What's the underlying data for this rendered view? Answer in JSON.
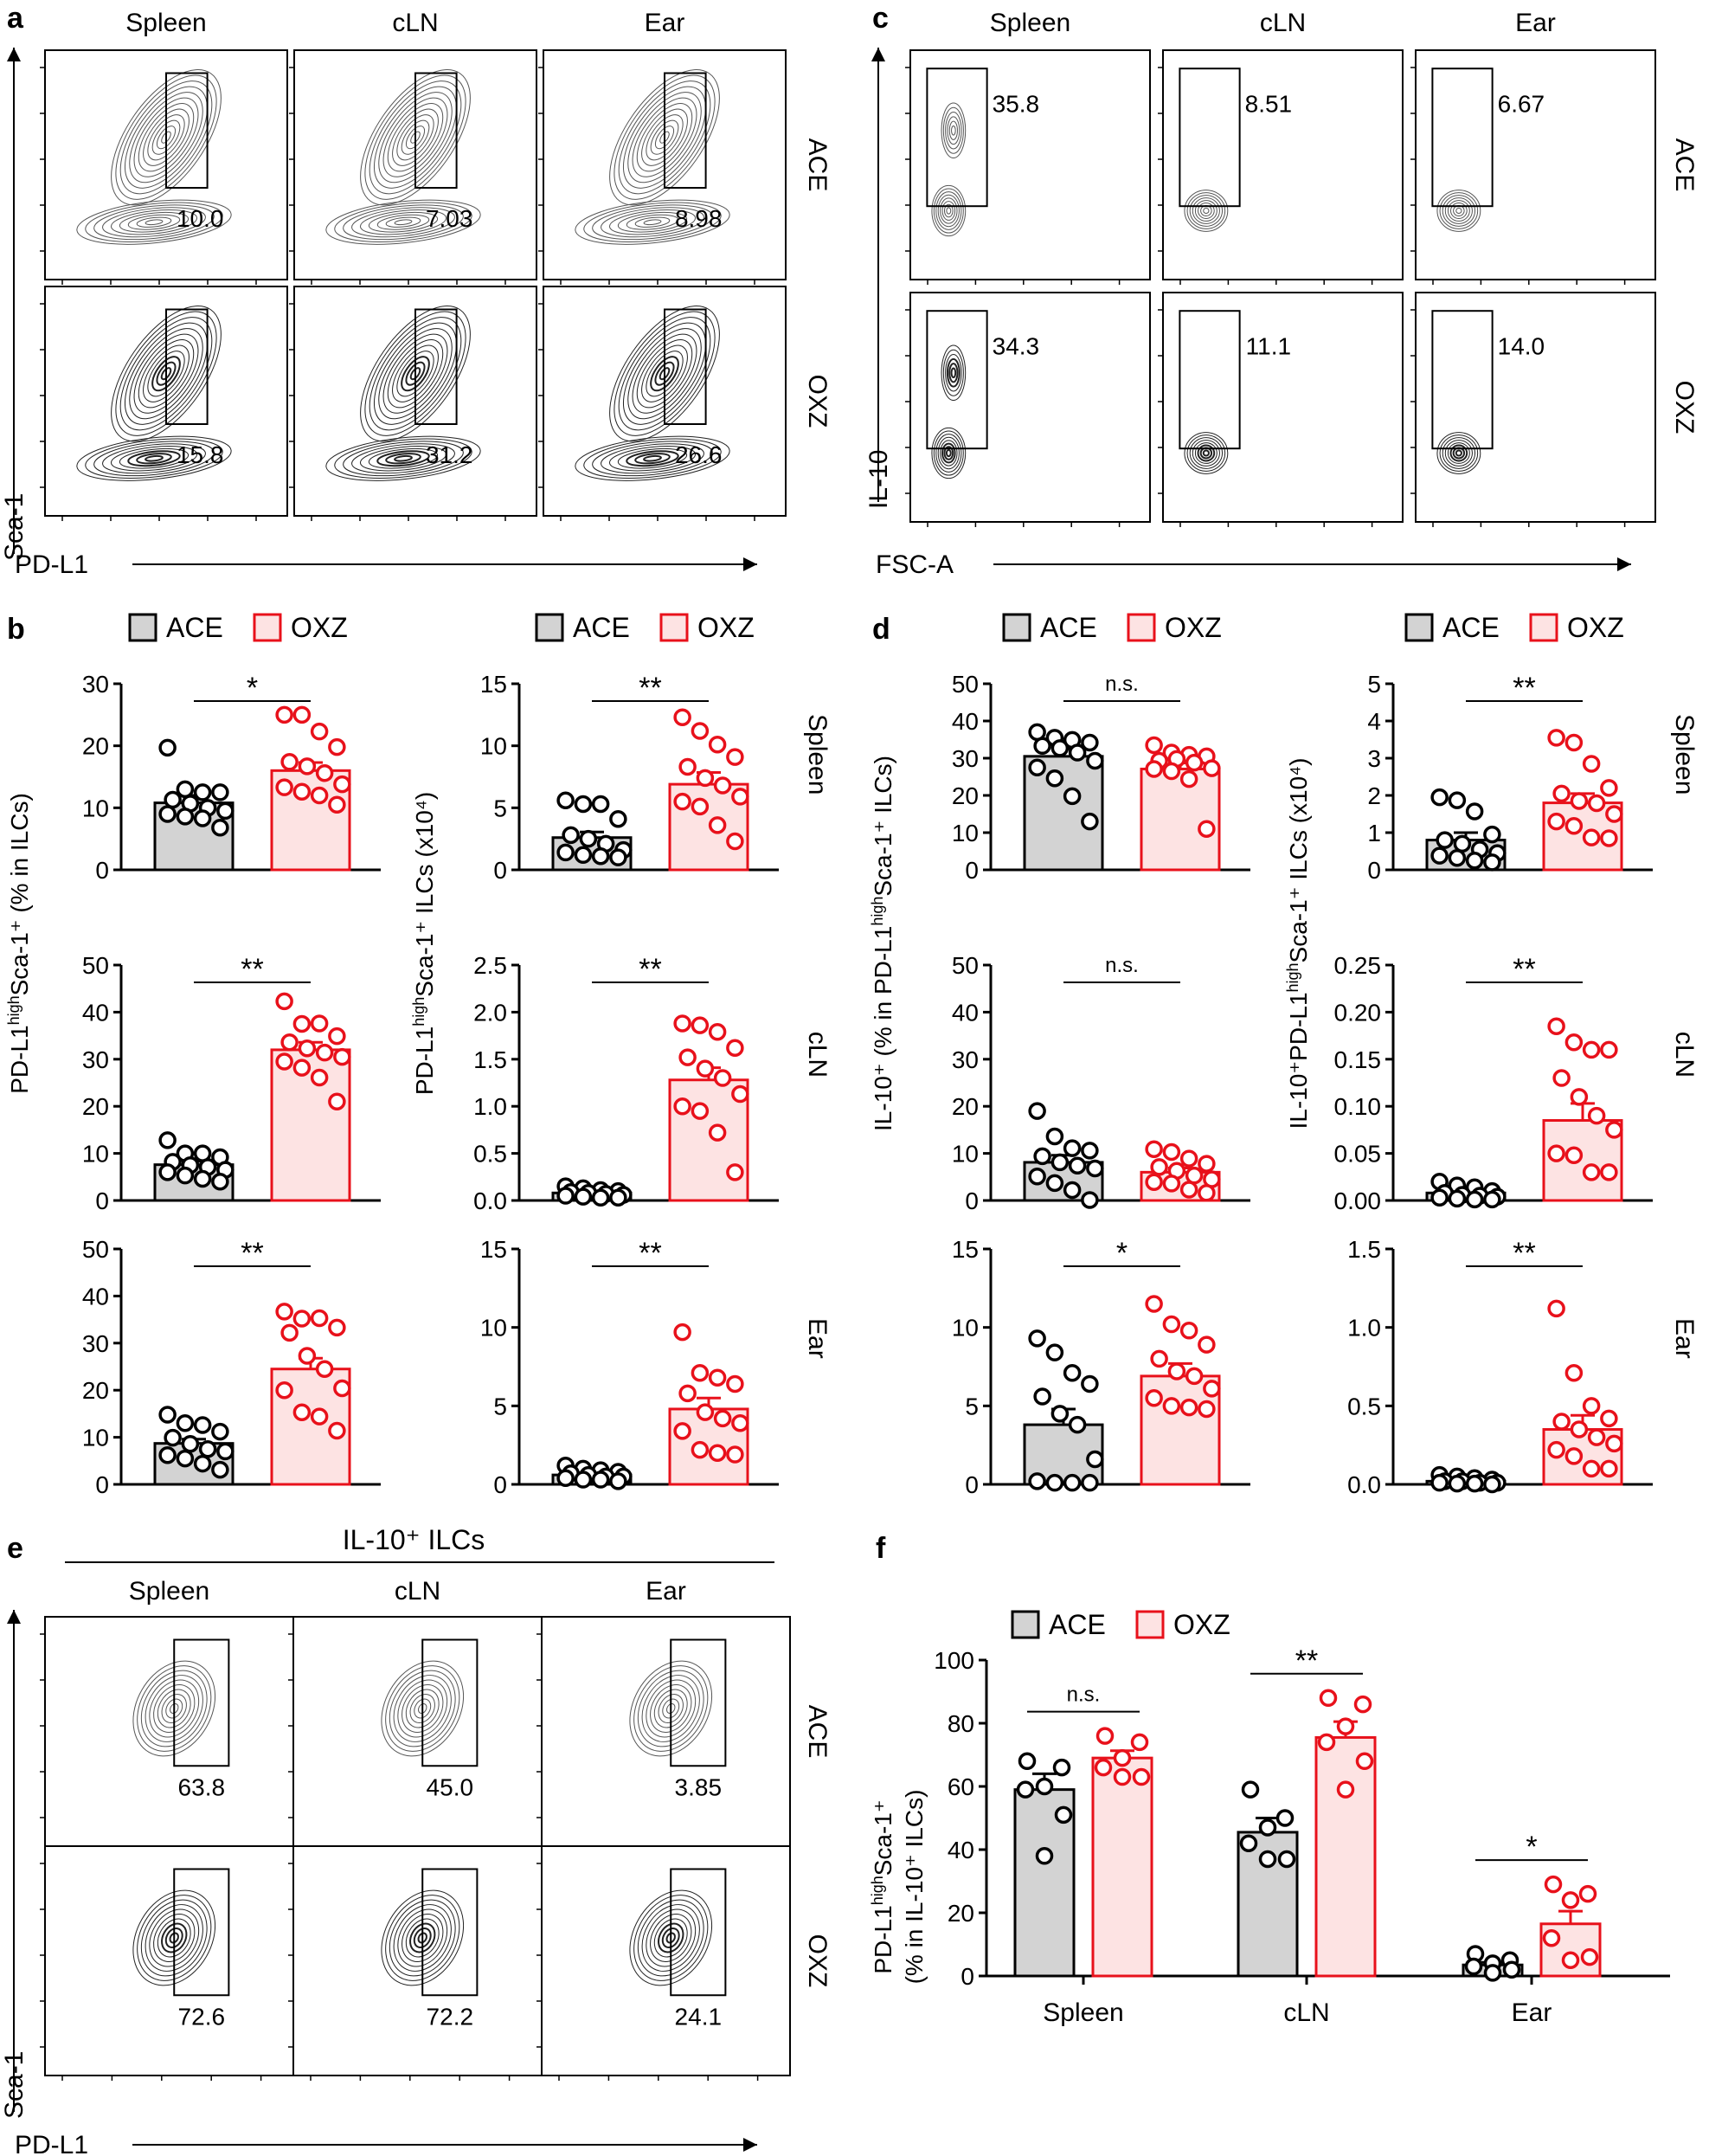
{
  "colors": {
    "ace_fill": "#d3d3d3",
    "ace_edge": "#000000",
    "oxz_fill": "#fde3e3",
    "oxz_edge": "#e8111b"
  },
  "legend": {
    "ace": "ACE",
    "oxz": "OXZ"
  },
  "panels": {
    "a": {
      "label": "a",
      "columns": [
        "Spleen",
        "cLN",
        "Ear"
      ],
      "rows": [
        "ACE",
        "OXZ"
      ],
      "xlabel": "PD-L1",
      "ylabel": "Sca-1",
      "values": [
        [
          "10.0",
          "7.03",
          "8.98"
        ],
        [
          "15.8",
          "31.2",
          "26.6"
        ]
      ]
    },
    "c": {
      "label": "c",
      "columns": [
        "Spleen",
        "cLN",
        "Ear"
      ],
      "rows": [
        "ACE",
        "OXZ"
      ],
      "xlabel": "FSC-A",
      "ylabel": "IL-10",
      "values": [
        [
          "35.8",
          "8.51",
          "6.67"
        ],
        [
          "34.3",
          "11.1",
          "14.0"
        ]
      ]
    },
    "e": {
      "label": "e",
      "title": "IL-10⁺ ILCs",
      "columns": [
        "Spleen",
        "cLN",
        "Ear"
      ],
      "rows": [
        "ACE",
        "OXZ"
      ],
      "xlabel": "PD-L1",
      "ylabel": "Sca-1",
      "values": [
        [
          "63.8",
          "45.0",
          "3.85"
        ],
        [
          "72.6",
          "72.2",
          "24.1"
        ]
      ]
    },
    "b": {
      "label": "b",
      "ylabel_left": "PD-L1highSca-1⁺ (% in ILCs)",
      "ylabel_right": "PD-L1highSca-1⁺ ILCs (x10⁴)",
      "rows": [
        "Spleen",
        "cLN",
        "Ear"
      ]
    },
    "d": {
      "label": "d",
      "ylabel_left": "IL-10⁺ (% in PD-L1highSca-1⁺ ILCs)",
      "ylabel_right": "IL-10⁺PD-L1highSca-1⁺ ILCs (x10⁴)",
      "rows": [
        "Spleen",
        "cLN",
        "Ear"
      ]
    },
    "f": {
      "label": "f",
      "ylabel_line1": "PD-L1highSca-1⁺",
      "ylabel_line2": "(% in IL-10⁺ ILCs)"
    }
  },
  "chart_data": [
    {
      "id": "b_spleen_pct",
      "type": "bar",
      "panel": "b",
      "tissue": "Spleen",
      "categories": [
        "ACE",
        "OXZ"
      ],
      "ylim": [
        0,
        30
      ],
      "ticks": [
        0,
        10,
        20,
        30
      ],
      "series": [
        {
          "name": "ACE",
          "mean": 10.8,
          "sem": 1.2,
          "points": [
            19.7,
            13,
            12.5,
            12.5,
            11.3,
            10.7,
            10,
            9.5,
            9,
            8.6,
            8.3,
            6.8
          ]
        },
        {
          "name": "OXZ",
          "mean": 16,
          "sem": 1.3,
          "points": [
            25,
            25,
            22.3,
            19.8,
            17.4,
            16.7,
            15.6,
            13.8,
            13.3,
            12.6,
            12,
            10.5
          ]
        }
      ],
      "significance": "*"
    },
    {
      "id": "b_spleen_num",
      "type": "bar",
      "panel": "b",
      "tissue": "Spleen",
      "categories": [
        "ACE",
        "OXZ"
      ],
      "ylim": [
        0,
        15
      ],
      "ticks": [
        0,
        5,
        10,
        15
      ],
      "series": [
        {
          "name": "ACE",
          "mean": 2.6,
          "sem": 0.45,
          "points": [
            5.6,
            5.3,
            5.3,
            4.1,
            2.8,
            2.5,
            2.1,
            1.6,
            1.4,
            1.2,
            1.1,
            1.0
          ]
        },
        {
          "name": "OXZ",
          "mean": 6.9,
          "sem": 0.95,
          "points": [
            12.3,
            11.2,
            10.1,
            9.1,
            8.3,
            7.4,
            6.8,
            5.9,
            5.5,
            5.1,
            3.6,
            2.3
          ]
        }
      ],
      "significance": "**"
    },
    {
      "id": "b_cln_pct",
      "type": "bar",
      "panel": "b",
      "tissue": "cLN",
      "categories": [
        "ACE",
        "OXZ"
      ],
      "ylim": [
        0,
        50
      ],
      "ticks": [
        0,
        10,
        20,
        30,
        40,
        50
      ],
      "series": [
        {
          "name": "ACE",
          "mean": 7.6,
          "sem": 0.7,
          "points": [
            12.8,
            10,
            10,
            9.2,
            8.2,
            7.5,
            7.1,
            6.5,
            6,
            5.3,
            4.6,
            4
          ]
        },
        {
          "name": "OXZ",
          "mean": 32,
          "sem": 1.6,
          "points": [
            42.3,
            37.5,
            37.6,
            34.9,
            33.6,
            32.3,
            31.4,
            30.5,
            29.5,
            28.2,
            26.1,
            21
          ]
        }
      ],
      "significance": "**"
    },
    {
      "id": "b_cln_num",
      "type": "bar",
      "panel": "b",
      "tissue": "cLN",
      "categories": [
        "ACE",
        "OXZ"
      ],
      "ylim": [
        0,
        2.5
      ],
      "ticks": [
        0,
        0.5,
        1.0,
        1.5,
        2.0,
        2.5
      ],
      "series": [
        {
          "name": "ACE",
          "mean": 0.08,
          "sem": 0.01,
          "points": [
            0.15,
            0.13,
            0.11,
            0.1,
            0.09,
            0.08,
            0.07,
            0.06,
            0.05,
            0.04,
            0.03,
            0.03
          ]
        },
        {
          "name": "OXZ",
          "mean": 1.28,
          "sem": 0.13,
          "points": [
            1.88,
            1.86,
            1.79,
            1.62,
            1.52,
            1.4,
            1.3,
            1.13,
            1.0,
            0.95,
            0.72,
            0.3
          ]
        }
      ],
      "significance": "**"
    },
    {
      "id": "b_ear_pct",
      "type": "bar",
      "panel": "b",
      "tissue": "Ear",
      "categories": [
        "ACE",
        "OXZ"
      ],
      "ylim": [
        0,
        50
      ],
      "ticks": [
        0,
        10,
        20,
        30,
        40,
        50
      ],
      "series": [
        {
          "name": "ACE",
          "mean": 8.7,
          "sem": 0.9,
          "points": [
            14.8,
            13,
            12.6,
            11.2,
            9.9,
            8.6,
            7.5,
            7,
            6.2,
            5.5,
            4.4,
            3.1
          ]
        },
        {
          "name": "OXZ",
          "mean": 24.5,
          "sem": 2.3,
          "points": [
            36.7,
            35.2,
            35.3,
            33.3,
            32.2,
            27.3,
            24.5,
            20.4,
            20,
            15.3,
            14.4,
            11.4
          ]
        }
      ],
      "significance": "**"
    },
    {
      "id": "b_ear_num",
      "type": "bar",
      "panel": "b",
      "tissue": "Ear",
      "categories": [
        "ACE",
        "OXZ"
      ],
      "ylim": [
        0,
        15
      ],
      "ticks": [
        0,
        5,
        10,
        15
      ],
      "series": [
        {
          "name": "ACE",
          "mean": 0.6,
          "sem": 0.1,
          "points": [
            1.2,
            1.0,
            0.9,
            0.8,
            0.7,
            0.6,
            0.5,
            0.5,
            0.4,
            0.3,
            0.3,
            0.2
          ]
        },
        {
          "name": "OXZ",
          "mean": 4.8,
          "sem": 0.7,
          "points": [
            9.7,
            7.1,
            6.8,
            6.4,
            5.8,
            4.6,
            4.2,
            3.9,
            3.4,
            2.2,
            2.0,
            1.9
          ]
        }
      ],
      "significance": "**"
    },
    {
      "id": "d_spleen_pct",
      "type": "bar",
      "panel": "d",
      "tissue": "Spleen",
      "categories": [
        "ACE",
        "OXZ"
      ],
      "ylim": [
        0,
        50
      ],
      "ticks": [
        0,
        10,
        20,
        30,
        40,
        50
      ],
      "series": [
        {
          "name": "ACE",
          "mean": 30.5,
          "sem": 2.0,
          "points": [
            37,
            35.5,
            34.9,
            34.2,
            33.3,
            32.7,
            31.5,
            29.3,
            27.5,
            24.6,
            19.8,
            13
          ]
        },
        {
          "name": "OXZ",
          "mean": 27.1,
          "sem": 1.6,
          "points": [
            33.5,
            31.5,
            30.9,
            30.5,
            29.3,
            29.8,
            28.8,
            27.3,
            27.1,
            26.5,
            24.4,
            11
          ]
        }
      ],
      "significance": "n.s."
    },
    {
      "id": "d_spleen_num",
      "type": "bar",
      "panel": "d",
      "tissue": "Spleen",
      "categories": [
        "ACE",
        "OXZ"
      ],
      "ylim": [
        0,
        5
      ],
      "ticks": [
        0,
        1,
        2,
        3,
        4,
        5
      ],
      "series": [
        {
          "name": "ACE",
          "mean": 0.8,
          "sem": 0.2,
          "points": [
            1.95,
            1.87,
            1.57,
            0.95,
            0.8,
            0.7,
            0.55,
            0.45,
            0.38,
            0.32,
            0.25,
            0.2
          ]
        },
        {
          "name": "OXZ",
          "mean": 1.8,
          "sem": 0.25,
          "points": [
            3.55,
            3.42,
            2.85,
            2.2,
            2.05,
            1.85,
            1.79,
            1.5,
            1.3,
            1.18,
            0.87,
            0.85
          ]
        }
      ],
      "significance": "**"
    },
    {
      "id": "d_cln_pct",
      "type": "bar",
      "panel": "d",
      "tissue": "cLN",
      "categories": [
        "ACE",
        "OXZ"
      ],
      "ylim": [
        0,
        50
      ],
      "ticks": [
        0,
        10,
        20,
        30,
        40,
        50
      ],
      "series": [
        {
          "name": "ACE",
          "mean": 8.1,
          "sem": 1.5,
          "points": [
            19,
            13.6,
            11.1,
            10.6,
            9.4,
            8.1,
            7.4,
            6.8,
            5.1,
            3.7,
            2.2,
            0.1
          ]
        },
        {
          "name": "OXZ",
          "mean": 6.0,
          "sem": 0.9,
          "points": [
            10.9,
            10.3,
            8.9,
            7.8,
            7.1,
            6.3,
            5.3,
            4.5,
            3.9,
            3.6,
            2.3,
            1.6
          ]
        }
      ],
      "significance": "n.s."
    },
    {
      "id": "d_cln_num",
      "type": "bar",
      "panel": "d",
      "tissue": "cLN",
      "categories": [
        "ACE",
        "OXZ"
      ],
      "ylim": [
        0,
        0.25
      ],
      "ticks": [
        0,
        0.05,
        0.1,
        0.15,
        0.2,
        0.25
      ],
      "series": [
        {
          "name": "ACE",
          "mean": 0.008,
          "sem": 0.002,
          "points": [
            0.02,
            0.016,
            0.014,
            0.01,
            0.008,
            0.006,
            0.005,
            0.004,
            0.003,
            0.002,
            0.001,
            0.001
          ]
        },
        {
          "name": "OXZ",
          "mean": 0.085,
          "sem": 0.018,
          "points": [
            0.185,
            0.168,
            0.16,
            0.16,
            0.13,
            0.11,
            0.09,
            0.075,
            0.05,
            0.048,
            0.03,
            0.03
          ]
        }
      ],
      "significance": "**"
    },
    {
      "id": "d_ear_pct",
      "type": "bar",
      "panel": "d",
      "tissue": "Ear",
      "categories": [
        "ACE",
        "OXZ"
      ],
      "ylim": [
        0,
        15
      ],
      "ticks": [
        0,
        5,
        10,
        15
      ],
      "series": [
        {
          "name": "ACE",
          "mean": 3.8,
          "sem": 1.0,
          "points": [
            9.3,
            8.4,
            7.1,
            6.4,
            5.6,
            4.5,
            3.8,
            1.6,
            0.2,
            0.1,
            0.1,
            0.1
          ]
        },
        {
          "name": "OXZ",
          "mean": 6.9,
          "sem": 0.8,
          "points": [
            11.5,
            10.2,
            9.8,
            8.9,
            8,
            7.2,
            6.9,
            6.1,
            5.5,
            5,
            4.9,
            4.8
          ]
        }
      ],
      "significance": "*"
    },
    {
      "id": "d_ear_num",
      "type": "bar",
      "panel": "d",
      "tissue": "Ear",
      "categories": [
        "ACE",
        "OXZ"
      ],
      "ylim": [
        0,
        1.5
      ],
      "ticks": [
        0,
        0.5,
        1.0,
        1.5
      ],
      "series": [
        {
          "name": "ACE",
          "mean": 0.02,
          "sem": 0.005,
          "points": [
            0.06,
            0.05,
            0.04,
            0.03,
            0.02,
            0.02,
            0.01,
            0.01,
            0.01,
            0.005,
            0.005,
            0.0
          ]
        },
        {
          "name": "OXZ",
          "mean": 0.35,
          "sem": 0.09,
          "points": [
            1.12,
            0.71,
            0.5,
            0.42,
            0.4,
            0.35,
            0.3,
            0.26,
            0.22,
            0.18,
            0.1,
            0.1
          ]
        }
      ],
      "significance": "**"
    },
    {
      "id": "f_grouped",
      "type": "bar",
      "panel": "f",
      "categories": [
        "Spleen",
        "cLN",
        "Ear"
      ],
      "ylim": [
        0,
        100
      ],
      "ticks": [
        0,
        20,
        40,
        60,
        80,
        100
      ],
      "series": [
        {
          "name": "ACE",
          "means": [
            59,
            45.5,
            3.5
          ],
          "sems": [
            5,
            4.5,
            0.8
          ],
          "points": [
            [
              68,
              66,
              60,
              59,
              51,
              38
            ],
            [
              59,
              50,
              47,
              42,
              37,
              37
            ],
            [
              7,
              5,
              4,
              3,
              2,
              1
            ]
          ]
        },
        {
          "name": "OXZ",
          "means": [
            69,
            75.5,
            16.5
          ],
          "sems": [
            2.3,
            5,
            4
          ],
          "points": [
            [
              76,
              74,
              69,
              66,
              63,
              63
            ],
            [
              88,
              86,
              79,
              74,
              68,
              59
            ],
            [
              29,
              26,
              24,
              12,
              6,
              5
            ]
          ]
        }
      ],
      "significance": [
        "n.s.",
        "**",
        "*"
      ],
      "ylabel": "PD-L1highSca-1⁺ (% in IL-10⁺ ILCs)"
    }
  ]
}
